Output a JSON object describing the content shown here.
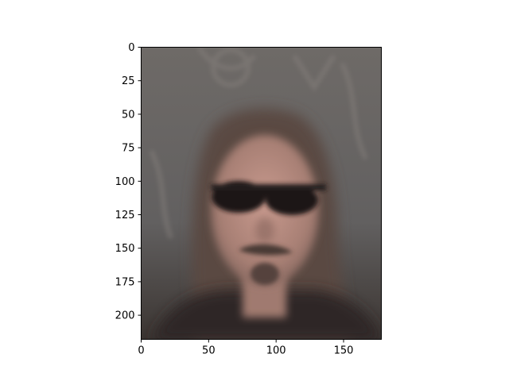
{
  "image": {
    "description_color_palette": [
      "#6f6a66",
      "#5b5552",
      "#b78c80",
      "#2a2420"
    ],
    "extent": {
      "x": [
        0,
        178
      ],
      "y": [
        0,
        218
      ]
    }
  },
  "axes": {
    "x_ticks": [
      0,
      50,
      100,
      150
    ],
    "y_ticks": [
      0,
      25,
      50,
      75,
      100,
      125,
      150,
      175,
      200
    ]
  }
}
